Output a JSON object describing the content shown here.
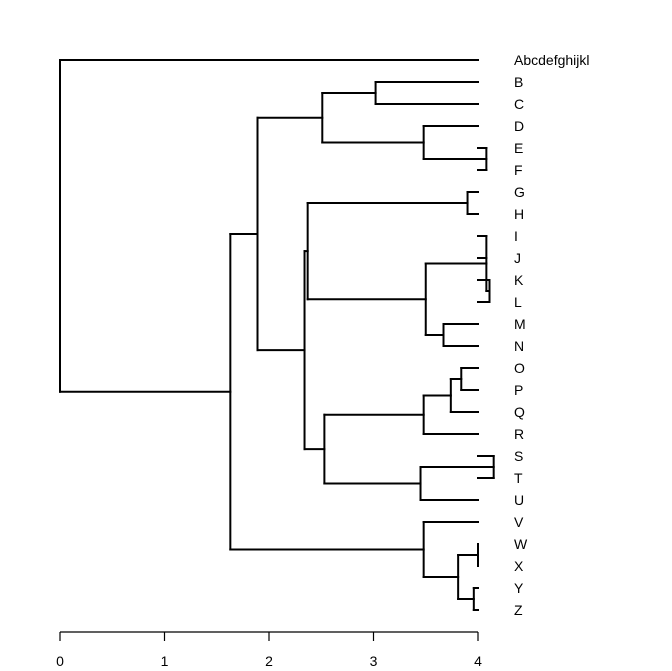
{
  "chart_data": {
    "type": "dendrogram",
    "orientation": "horizontal",
    "title": "",
    "xlabel": "",
    "ylabel": "",
    "xlim": [
      0,
      4
    ],
    "x_ticks": [
      0,
      1,
      2,
      3,
      4
    ],
    "x_tick_labels": [
      "0",
      "1",
      "2",
      "3",
      "4"
    ],
    "leaves": [
      "Abcdefghijkl",
      "B",
      "C",
      "D",
      "E",
      "F",
      "G",
      "H",
      "I",
      "J",
      "K",
      "L",
      "M",
      "N",
      "O",
      "P",
      "Q",
      "R",
      "S",
      "T",
      "U",
      "V",
      "W",
      "X",
      "Y",
      "Z"
    ],
    "leaf_height": 4,
    "merges": [
      {
        "children": [
          "B",
          "C"
        ],
        "height": 3.02
      },
      {
        "children": [
          "E",
          "F"
        ],
        "height": 4.08
      },
      {
        "children": [
          "D",
          "EF"
        ],
        "height": 3.48
      },
      {
        "children": [
          "BC",
          "DEF"
        ],
        "height": 2.51
      },
      {
        "children": [
          "G",
          "H"
        ],
        "height": 3.9
      },
      {
        "children": [
          "K",
          "L"
        ],
        "height": 4.11
      },
      {
        "children": [
          "I",
          "J",
          "KL"
        ],
        "height": 4.08
      },
      {
        "children": [
          "M",
          "N"
        ],
        "height": 3.67
      },
      {
        "children": [
          "IJKL",
          "MN"
        ],
        "height": 3.5
      },
      {
        "children": [
          "GH",
          "IJKLMN"
        ],
        "height": 2.37
      },
      {
        "children": [
          "O",
          "P"
        ],
        "height": 3.84
      },
      {
        "children": [
          "OP",
          "Q"
        ],
        "height": 3.74
      },
      {
        "children": [
          "OPQ",
          "R"
        ],
        "height": 3.48
      },
      {
        "children": [
          "S",
          "T"
        ],
        "height": 4.15
      },
      {
        "children": [
          "ST",
          "U"
        ],
        "height": 3.45
      },
      {
        "children": [
          "OPQR",
          "STU"
        ],
        "height": 2.53
      },
      {
        "children": [
          "G-N",
          "O-U"
        ],
        "height": 2.34
      },
      {
        "children": [
          "B-F",
          "G-U"
        ],
        "height": 1.89
      },
      {
        "children": [
          "W",
          "X"
        ],
        "height": 4.0
      },
      {
        "children": [
          "Y",
          "Z"
        ],
        "height": 3.96
      },
      {
        "children": [
          "WX",
          "YZ"
        ],
        "height": 3.81
      },
      {
        "children": [
          "V",
          "WXYZ"
        ],
        "height": 3.48
      },
      {
        "children": [
          "B-U",
          "V-Z"
        ],
        "height": 1.63
      },
      {
        "children": [
          "Abcdefghijkl",
          "B-Z"
        ],
        "height": 0
      }
    ]
  }
}
